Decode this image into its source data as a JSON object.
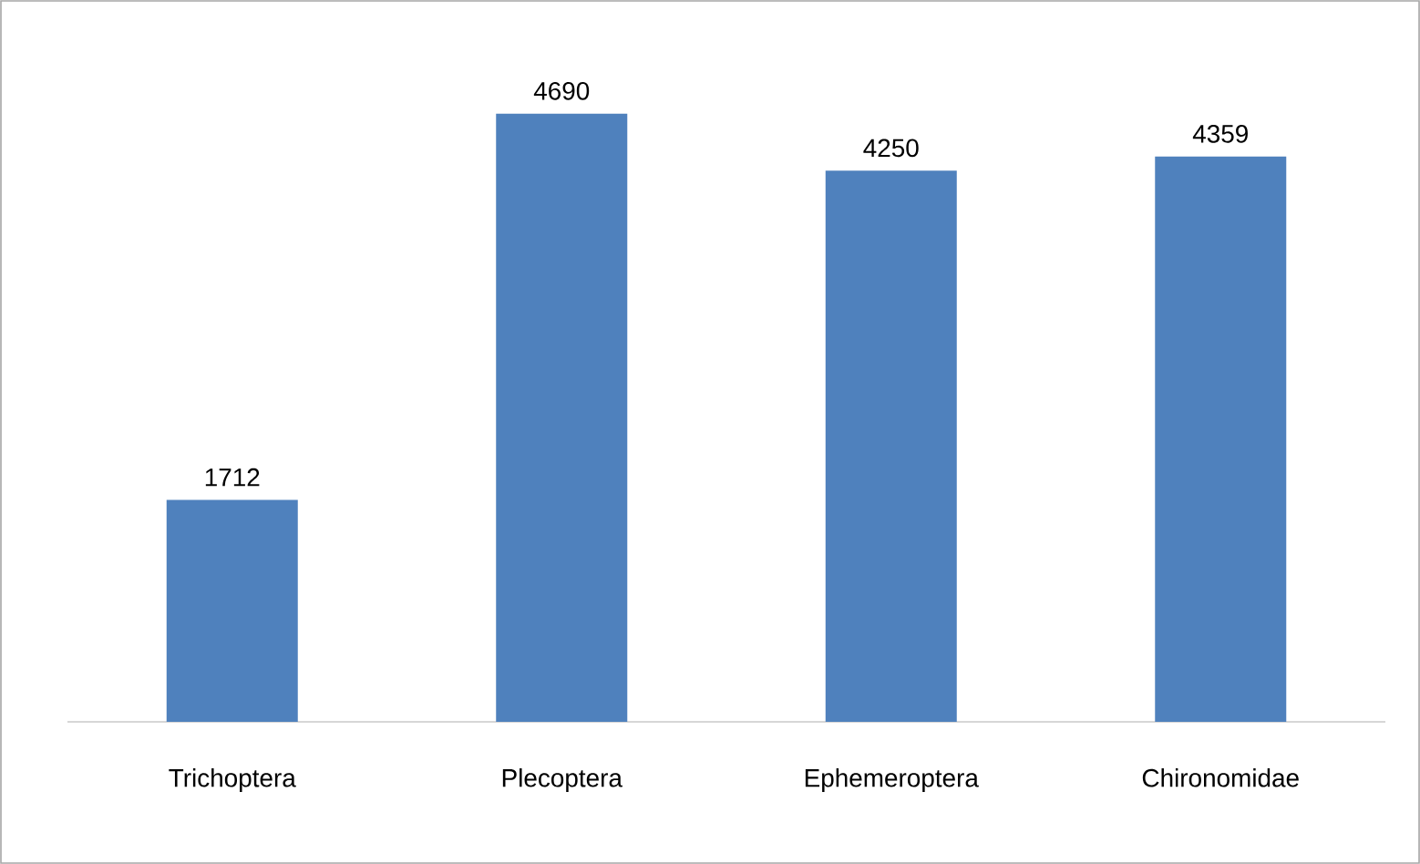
{
  "chart_data": {
    "type": "bar",
    "categories": [
      "Trichoptera",
      "Plecoptera",
      "Ephemeroptera",
      "Chironomidae"
    ],
    "values": [
      1712,
      4690,
      4250,
      4359
    ],
    "color": "#4f81bd",
    "data_labels": true
  }
}
